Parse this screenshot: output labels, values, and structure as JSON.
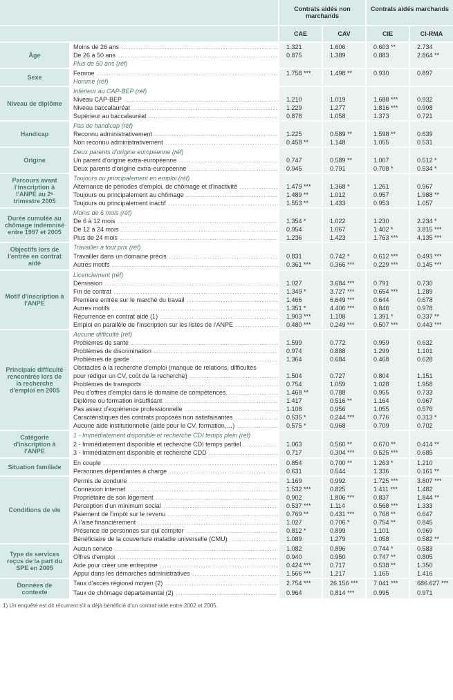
{
  "header": {
    "group1": "Contrats aidés\nnon marchands",
    "group2": "Contrats aidés\nmarchands",
    "cols": [
      "CAE",
      "CAV",
      "CIE",
      "CI-RMA"
    ]
  },
  "sections": [
    {
      "title": "Âge",
      "rows": [
        {
          "label": "Moins de 26 ans",
          "v": [
            "1.321",
            "1.606",
            "0.603 **",
            "2.734"
          ]
        },
        {
          "label": "De 26 à 50 ans",
          "v": [
            "0.875",
            "1.389",
            "0.883",
            "2.864 **"
          ]
        },
        {
          "label": "Plus de 50 ans (réf)",
          "ref": true,
          "v": [
            "",
            "",
            "",
            ""
          ]
        }
      ]
    },
    {
      "title": "Sexe",
      "rows": [
        {
          "label": "Femme",
          "v": [
            "1.758 ***",
            "1.498 **",
            "0.930",
            "0.897"
          ]
        },
        {
          "label": "Homme (réf)",
          "ref": true,
          "v": [
            "",
            "",
            "",
            ""
          ]
        }
      ]
    },
    {
      "title": "Niveau de diplôme",
      "rows": [
        {
          "label": "Inférieur au CAP-BEP (réf)",
          "ref": true,
          "v": [
            "",
            "",
            "",
            ""
          ]
        },
        {
          "label": "Niveau CAP-BEP",
          "v": [
            "1.210",
            "1.019",
            "1.688 ***",
            "0.932"
          ]
        },
        {
          "label": "Niveau baccalauréat",
          "v": [
            "1.229",
            "1.277",
            "1.816 ***",
            "0.998"
          ]
        },
        {
          "label": "Supérieur au baccalauréat",
          "v": [
            "0.878",
            "1.058",
            "1.373",
            "0.721"
          ]
        }
      ]
    },
    {
      "title": "Handicap",
      "rows": [
        {
          "label": "Pas de handicap (réf)",
          "ref": true,
          "v": [
            "",
            "",
            "",
            ""
          ]
        },
        {
          "label": "Reconnu administrativement",
          "v": [
            "1.225",
            "0.589 **",
            "1.598 **",
            "0.639"
          ]
        },
        {
          "label": "Non reconnu administrativement",
          "v": [
            "0.458 **",
            "1.148",
            "1.055",
            "0.531"
          ]
        }
      ]
    },
    {
      "title": "Origine",
      "rows": [
        {
          "label": "Deux parents d'origine européenne (réf)",
          "ref": true,
          "v": [
            "",
            "",
            "",
            ""
          ]
        },
        {
          "label": "Un parent d'origine extra-européenne",
          "v": [
            "0.747",
            "0.589 **",
            "1.007",
            "0.512 *"
          ]
        },
        {
          "label": "Deux parents d'origine extra-européenne",
          "v": [
            "0.945",
            "0.791",
            "0.708 *",
            "0.534 *"
          ]
        }
      ]
    },
    {
      "title": "Parcours avant l'inscription à l'ANPE au 2ᵉ trimestre 2005",
      "rows": [
        {
          "label": "Toujours ou principalement en emploi (réf)",
          "ref": true,
          "v": [
            "",
            "",
            "",
            ""
          ]
        },
        {
          "label": "Alternance de périodes d'emploi, de chômage et d'inactivité",
          "v": [
            "1.479 ***",
            "1.368 *",
            "1.261",
            "0.967"
          ]
        },
        {
          "label": "Toujours ou principalement au chômage",
          "v": [
            "1.489 **",
            "1.012",
            "0.957",
            "1.988 **"
          ]
        },
        {
          "label": "Toujours ou principalement inactif",
          "v": [
            "1.553 **",
            "1.433",
            "0.953",
            "1.057"
          ]
        }
      ]
    },
    {
      "title": "Durée cumulée au chômage indemnisé entre 1997 et 2005",
      "rows": [
        {
          "label": "Moins de 6 mois (réf)",
          "ref": true,
          "v": [
            "",
            "",
            "",
            ""
          ]
        },
        {
          "label": "De 6 à 12 mois",
          "v": [
            "1.354 *",
            "1.022",
            "1.230",
            "2.234 *"
          ]
        },
        {
          "label": "De 12 à 24 mois",
          "v": [
            "0.954",
            "1.067",
            "1.402 *",
            "3.815 ***"
          ]
        },
        {
          "label": "Plus de 24 mois",
          "v": [
            "1.236",
            "1.423",
            "1.763 ***",
            "4.135 ***"
          ]
        }
      ]
    },
    {
      "title": "Objectifs lors de l'entrée en contrat aidé",
      "rows": [
        {
          "label": "Travailler à tout prix (réf)",
          "ref": true,
          "v": [
            "",
            "",
            "",
            ""
          ]
        },
        {
          "label": "Travailler dans un domaine précis",
          "v": [
            "0.831",
            "0.742 *",
            "0.612 ***",
            "0.493 ***"
          ]
        },
        {
          "label": "Autres motifs",
          "v": [
            "0.361 ***",
            "0.366 ***",
            "0.229 ***",
            "0.145 ***"
          ]
        }
      ]
    },
    {
      "title": "Motif d'inscription à l'ANPE",
      "rows": [
        {
          "label": "Licenciement (réf)",
          "ref": true,
          "v": [
            "",
            "",
            "",
            ""
          ]
        },
        {
          "label": "Démission",
          "v": [
            "1.027",
            "3.684 ***",
            "0.791",
            "0.730"
          ]
        },
        {
          "label": "Fin de contrat",
          "v": [
            "1.349 *",
            "3.727 ***",
            "0.654 ***",
            "1.289"
          ]
        },
        {
          "label": "Première entrée sur le marché du travail",
          "v": [
            "1.466",
            "6.649 ***",
            "0.644",
            "0.678"
          ]
        },
        {
          "label": "Autres motifs",
          "v": [
            "1.351 *",
            "4.406 ***",
            "0.846",
            "0.978"
          ]
        },
        {
          "label": "Récurrence en contrat aidé (1)",
          "v": [
            "1.903 ***",
            "1.108",
            "1.391 *",
            "0.337 **"
          ]
        },
        {
          "label": "Emploi en parallèle de l'inscription sur les listes de l'ANPE",
          "v": [
            "0.480 ***",
            "0.249 ***",
            "0.507 ***",
            "0.443 ***"
          ]
        }
      ]
    },
    {
      "title": "Principale difficulté rencontrée lors de la recherche d'emploi en 2005",
      "rows": [
        {
          "label": "Aucune difficulté (réf)",
          "ref": true,
          "v": [
            "",
            "",
            "",
            ""
          ]
        },
        {
          "label": "Problèmes de santé",
          "v": [
            "1.599",
            "0.772",
            "0.959",
            "0.632"
          ]
        },
        {
          "label": "Problèmes de discrimination",
          "v": [
            "0.974",
            "0.888",
            "1.299",
            "1.101"
          ]
        },
        {
          "label": "Problèmes de garde",
          "v": [
            "1.364",
            "0.684",
            "0.468",
            "0.628"
          ]
        },
        {
          "label": "Obstacles à la recherche d'emploi (manque de relations, difficultés",
          "nodots": true,
          "v": [
            "",
            "",
            "",
            ""
          ]
        },
        {
          "label": "pour rédiger un CV, coût de la recherche)",
          "v": [
            "1.504",
            "0.727",
            "0.804",
            "1.151"
          ]
        },
        {
          "label": "Problèmes de transports",
          "v": [
            "0.754",
            "1.059",
            "1.028",
            "1.958"
          ]
        },
        {
          "label": "Peu d'offres d'emploi dans le domaine de compétences",
          "v": [
            "1.468 **",
            "0.788",
            "0.955",
            "0.733"
          ]
        },
        {
          "label": "Diplôme ou formation insuffisant",
          "v": [
            "1.417",
            "0.516 **",
            "1.164",
            "0.967"
          ]
        },
        {
          "label": "Pas assez d'expérience professionnelle",
          "v": [
            "1.108",
            "0.956",
            "1.055",
            "0.576"
          ]
        },
        {
          "label": "Caractéristiques des contrats proposés non satisfaisantes",
          "v": [
            "0.535 *",
            "0.244 ***",
            "0.776",
            "0.313 *"
          ]
        },
        {
          "label": "Aucune aide institutionnelle (aide pour le CV, formation,…)",
          "v": [
            "0.575 *",
            "0.968",
            "0.709",
            "0.702"
          ]
        }
      ]
    },
    {
      "title": "Catégorie d'inscription à l'ANPE",
      "rows": [
        {
          "label": "1 - Immédiatement disponible et recherche CDI temps plein (réf)",
          "ref": true,
          "v": [
            "",
            "",
            "",
            ""
          ]
        },
        {
          "label": "2 - Immédiatement disponible et recherche CDI temps partiel",
          "v": [
            "1.063",
            "0.560 **",
            "0.670 **",
            "0.414 **"
          ]
        },
        {
          "label": "3 - Immédiatement disponible et recherche CDD",
          "v": [
            "0.717",
            "0.304 ***",
            "0.525 ***",
            "0.685"
          ]
        }
      ]
    },
    {
      "title": "Situation familiale",
      "rows": [
        {
          "label": "En couple",
          "v": [
            "0.854",
            "0.700 **",
            "1.263 *",
            "1.210"
          ]
        },
        {
          "label": "Personnes dépendantes à charge",
          "v": [
            "0.631",
            "0.544",
            "1.336",
            "0.161 **"
          ]
        }
      ]
    },
    {
      "title": "Conditions de vie",
      "rows": [
        {
          "label": "Permis de conduire",
          "v": [
            "1.169",
            "0.992",
            "1.725 ***",
            "3.807 ***"
          ]
        },
        {
          "label": "Connexion internet",
          "v": [
            "1.532 ***",
            "0.825",
            "1.411 ***",
            "1.482"
          ]
        },
        {
          "label": "Propriétaire de son logement",
          "v": [
            "0.902",
            "1.806 ***",
            "0.837",
            "1.844 **"
          ]
        },
        {
          "label": "Perception d'un minimum social",
          "v": [
            "0.537 ***",
            "1.114",
            "0.568 ***",
            "1.333"
          ]
        },
        {
          "label": "Paiement de l'impôt sur le revenu",
          "v": [
            "0.769 **",
            "0.431 ***",
            "0.768 **",
            "0.647"
          ]
        },
        {
          "label": "À l'aise financièrement",
          "v": [
            "1.027",
            "0.706 *",
            "0.754 **",
            "0.845"
          ]
        },
        {
          "label": "Présence de personnes sur qui compter",
          "v": [
            "0.812 *",
            "0.899",
            "1.101",
            "0.969"
          ]
        },
        {
          "label": "Bénéficiaire de la couverture maladie universelle (CMU)",
          "v": [
            "1.089",
            "1.279",
            "1.058",
            "0.582 **"
          ]
        }
      ]
    },
    {
      "title": "Type de services reçus de la part du SPE en 2005",
      "rows": [
        {
          "label": "Aucun service",
          "v": [
            "1.082",
            "0.896",
            "0.744 *",
            "0.583"
          ]
        },
        {
          "label": "Offres d'emploi",
          "v": [
            "0.940",
            "0.950",
            "0.747 **",
            "0.805"
          ]
        },
        {
          "label": "Aide pour créer une entreprise",
          "v": [
            "0.424 ***",
            "0.717",
            "0.538 **",
            "1.350"
          ]
        },
        {
          "label": "Appui dans les démarches administratives",
          "v": [
            "1.566 ***",
            "1.217",
            "1.165",
            "1.416"
          ]
        }
      ]
    },
    {
      "title": "Données de contexte",
      "rows": [
        {
          "label": "Taux d'accès régional moyen (2)",
          "v": [
            "2.754 ***",
            "26.156 ***",
            "7.041 ***",
            "686.627 ***"
          ]
        },
        {
          "label": "Taux de chômage départemental (2)",
          "v": [
            "0.964",
            "0.814 ***",
            "0.995",
            "0.971"
          ]
        }
      ]
    }
  ],
  "footnote": "1) Un enquêté est dit récurrent s'il a déjà bénéficié d'un contrat aidé entre 2002 et 2005."
}
